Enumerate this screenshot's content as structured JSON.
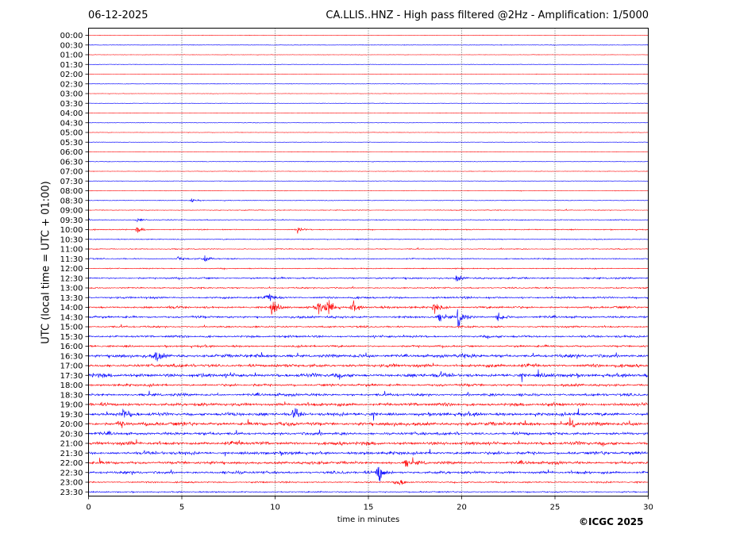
{
  "header": {
    "date": "06-12-2025",
    "title": "CA.LLIS..HNZ - High pass filtered @2Hz - Amplification: 1/5000"
  },
  "footer": {
    "copyright": "©ICGC 2025"
  },
  "chart_data": {
    "type": "line",
    "xlabel": "time in minutes",
    "ylabel": "UTC (local time = UTC + 01:00)",
    "xlim": [
      0,
      30
    ],
    "x_ticks": [
      0,
      5,
      10,
      15,
      20,
      25,
      30
    ],
    "x_gridlines": [
      5,
      10,
      15,
      20,
      25
    ],
    "grid": "vertical dotted lines every 5 minutes",
    "row_labels": [
      "00:00",
      "00:30",
      "01:00",
      "01:30",
      "02:00",
      "02:30",
      "03:00",
      "03:30",
      "04:00",
      "04:30",
      "05:00",
      "05:30",
      "06:00",
      "06:30",
      "07:00",
      "07:30",
      "08:00",
      "08:30",
      "09:00",
      "09:30",
      "10:00",
      "10:30",
      "11:00",
      "11:30",
      "12:00",
      "12:30",
      "13:00",
      "13:30",
      "14:00",
      "14:30",
      "15:00",
      "15:30",
      "16:00",
      "16:30",
      "17:00",
      "17:30",
      "18:00",
      "18:30",
      "19:00",
      "19:30",
      "20:00",
      "20:30",
      "21:00",
      "21:30",
      "22:00",
      "22:30",
      "23:00",
      "23:30"
    ],
    "row_colors": [
      "#ff0000",
      "#0000ff"
    ],
    "row_activity": [
      0.02,
      0.05,
      0.02,
      0.02,
      0.02,
      0.03,
      0.02,
      0.02,
      0.02,
      0.03,
      0.03,
      0.02,
      0.02,
      0.04,
      0.03,
      0.03,
      0.04,
      0.06,
      0.08,
      0.12,
      0.14,
      0.12,
      0.12,
      0.18,
      0.14,
      0.3,
      0.22,
      0.35,
      0.4,
      0.4,
      0.3,
      0.4,
      0.35,
      0.65,
      0.6,
      0.75,
      0.45,
      0.5,
      0.6,
      0.65,
      0.7,
      0.55,
      0.65,
      0.6,
      0.55,
      0.5,
      0.25,
      0.2
    ],
    "events": [
      {
        "row": 17,
        "minute": 5.5,
        "amp": 0.5
      },
      {
        "row": 19,
        "minute": 2.6,
        "amp": 0.8
      },
      {
        "row": 20,
        "minute": 2.6,
        "amp": 1.2
      },
      {
        "row": 20,
        "minute": 11.2,
        "amp": 1.0
      },
      {
        "row": 23,
        "minute": 4.8,
        "amp": 0.8
      },
      {
        "row": 23,
        "minute": 6.2,
        "amp": 1.2
      },
      {
        "row": 25,
        "minute": 19.7,
        "amp": 1.5
      },
      {
        "row": 27,
        "minute": 9.6,
        "amp": 1.8
      },
      {
        "row": 28,
        "minute": 9.8,
        "amp": 2.5
      },
      {
        "row": 28,
        "minute": 12.3,
        "amp": 3.0
      },
      {
        "row": 28,
        "minute": 12.8,
        "amp": 3.2
      },
      {
        "row": 28,
        "minute": 14.1,
        "amp": 2.2
      },
      {
        "row": 28,
        "minute": 18.5,
        "amp": 2.0
      },
      {
        "row": 29,
        "minute": 18.8,
        "amp": 1.6
      },
      {
        "row": 29,
        "minute": 19.8,
        "amp": 3.5
      },
      {
        "row": 29,
        "minute": 21.9,
        "amp": 2.0
      },
      {
        "row": 33,
        "minute": 3.6,
        "amp": 2.0
      },
      {
        "row": 39,
        "minute": 1.8,
        "amp": 2.0
      },
      {
        "row": 39,
        "minute": 11.0,
        "amp": 2.5
      },
      {
        "row": 40,
        "minute": 1.6,
        "amp": 1.5
      },
      {
        "row": 40,
        "minute": 25.8,
        "amp": 1.5
      },
      {
        "row": 44,
        "minute": 17.0,
        "amp": 1.5
      },
      {
        "row": 45,
        "minute": 15.5,
        "amp": 4.0
      },
      {
        "row": 46,
        "minute": 16.5,
        "amp": 2.0
      }
    ]
  }
}
